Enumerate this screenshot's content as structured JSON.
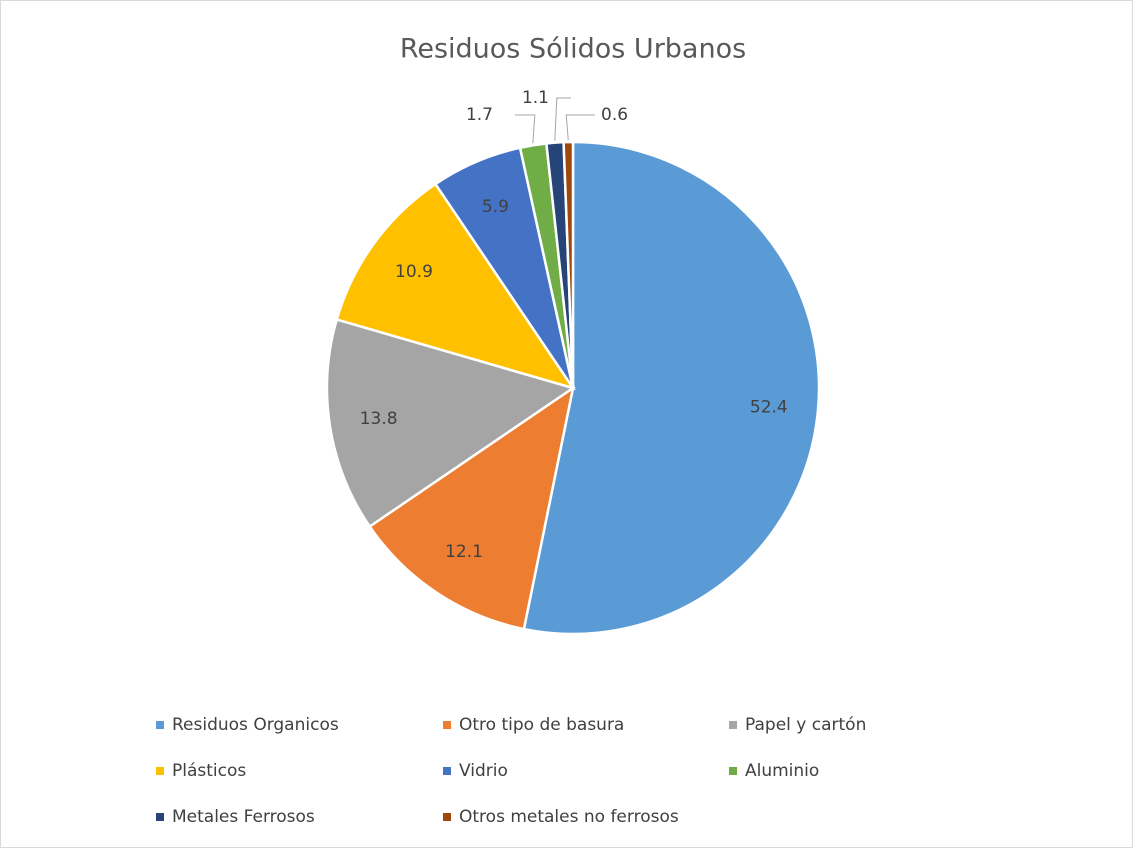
{
  "chart_data": {
    "type": "pie",
    "title": "Residuos Sólidos Urbanos",
    "categories": [
      "Residuos Organicos",
      "Otro tipo de basura",
      "Papel y cartón",
      "Plásticos",
      "Vidrio",
      "Aluminio",
      "Metales Ferrosos",
      "Otros metales no ferrosos"
    ],
    "values": [
      52.4,
      12.1,
      13.8,
      10.9,
      5.9,
      1.7,
      1.1,
      0.6
    ],
    "colors": [
      "#5b9bd5",
      "#ed7d31",
      "#a5a5a5",
      "#ffc000",
      "#4472c4",
      "#70ad47",
      "#264478",
      "#9e480e"
    ],
    "legend": "bottom"
  }
}
